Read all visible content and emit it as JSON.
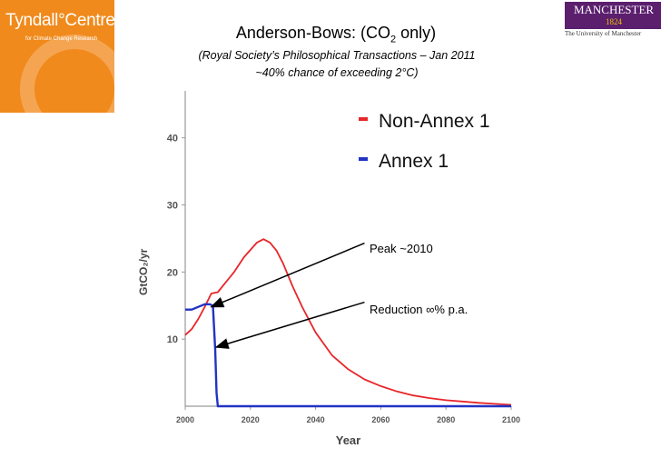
{
  "logos": {
    "tyndall": {
      "name": "Tyndall°Centre",
      "sub": "for Climate Change Research"
    },
    "manchester": {
      "name": "MANCHESTER",
      "year": "1824",
      "sub": "The University of Manchester"
    }
  },
  "header": {
    "title_main": "Anderson-Bows: (CO",
    "title_sub": "2",
    "title_end": " only)",
    "subtitle_line1": "(Royal Society’s Philosophical Transactions – Jan 2011",
    "subtitle_line2": "~40% chance of exceeding 2°C)"
  },
  "annotations": {
    "peak": "Peak ~2010",
    "reduction": "Reduction ∞% p.a."
  },
  "chart_data": {
    "type": "line",
    "xlabel": "Year",
    "ylabel": "GtCO₂/yr",
    "xlim": [
      2000,
      2100
    ],
    "ylim": [
      0,
      47
    ],
    "xticks": [
      2000,
      2020,
      2040,
      2060,
      2080,
      2100
    ],
    "yticks": [
      10,
      20,
      30,
      40
    ],
    "legend_position": "top-right",
    "series": [
      {
        "name": "Non-Annex 1",
        "color": "#e8262a",
        "x": [
          2000,
          2002,
          2004,
          2006,
          2008,
          2010,
          2012,
          2015,
          2018,
          2020,
          2022,
          2024,
          2026,
          2028,
          2030,
          2033,
          2036,
          2040,
          2045,
          2050,
          2055,
          2060,
          2065,
          2070,
          2075,
          2080,
          2085,
          2090,
          2095,
          2100
        ],
        "values": [
          10.6,
          11.5,
          13.0,
          14.8,
          16.8,
          17.0,
          18.2,
          20.0,
          22.2,
          23.3,
          24.4,
          24.9,
          24.4,
          23.2,
          21.3,
          17.8,
          14.7,
          11.0,
          7.6,
          5.5,
          4.0,
          3.0,
          2.2,
          1.6,
          1.2,
          0.9,
          0.7,
          0.5,
          0.35,
          0.2
        ]
      },
      {
        "name": "Annex 1",
        "color": "#2233c4",
        "x": [
          2000,
          2002,
          2004,
          2006,
          2007.5,
          2008.5,
          2009.2,
          2009.6,
          2010,
          2100
        ],
        "values": [
          14.4,
          14.4,
          14.8,
          15.2,
          15.2,
          15.0,
          8.5,
          2.0,
          0.0,
          0.0
        ]
      }
    ],
    "arrows": [
      {
        "from": [
          2055,
          24.3
        ],
        "to": [
          2008,
          14.8
        ],
        "label": "Peak ~2010"
      },
      {
        "from": [
          2055,
          15.5
        ],
        "to": [
          2009.5,
          8.8
        ],
        "label": "Reduction ∞% p.a."
      }
    ]
  }
}
